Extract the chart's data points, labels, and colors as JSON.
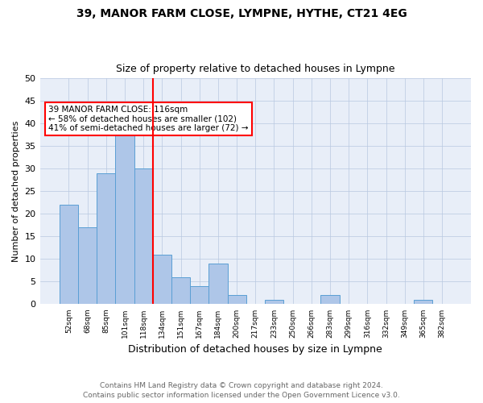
{
  "title1": "39, MANOR FARM CLOSE, LYMPNE, HYTHE, CT21 4EG",
  "title2": "Size of property relative to detached houses in Lympne",
  "xlabel": "Distribution of detached houses by size in Lympne",
  "ylabel": "Number of detached properties",
  "categories": [
    "52sqm",
    "68sqm",
    "85sqm",
    "101sqm",
    "118sqm",
    "134sqm",
    "151sqm",
    "167sqm",
    "184sqm",
    "200sqm",
    "217sqm",
    "233sqm",
    "250sqm",
    "266sqm",
    "283sqm",
    "299sqm",
    "316sqm",
    "332sqm",
    "349sqm",
    "365sqm",
    "382sqm"
  ],
  "values": [
    22,
    17,
    29,
    40,
    30,
    11,
    6,
    4,
    9,
    2,
    0,
    1,
    0,
    0,
    2,
    0,
    0,
    0,
    0,
    1,
    0
  ],
  "bar_color": "#aec6e8",
  "bar_edge_color": "#5a9fd4",
  "red_line_index": 4,
  "annotation_text": "39 MANOR FARM CLOSE: 116sqm\n← 58% of detached houses are smaller (102)\n41% of semi-detached houses are larger (72) →",
  "annotation_box_color": "white",
  "annotation_box_edge_color": "red",
  "ylim": [
    0,
    50
  ],
  "yticks": [
    0,
    5,
    10,
    15,
    20,
    25,
    30,
    35,
    40,
    45,
    50
  ],
  "footer_line1": "Contains HM Land Registry data © Crown copyright and database right 2024.",
  "footer_line2": "Contains public sector information licensed under the Open Government Licence v3.0.",
  "background_color": "#e8eef8"
}
